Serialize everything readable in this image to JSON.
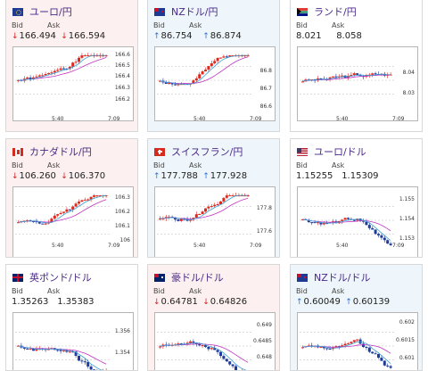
{
  "cards": [
    {
      "id": "eurjpy",
      "title": "ユーロ/円",
      "theme": "red",
      "flag": "eu",
      "bid_label": "Bid",
      "ask_label": "Ask",
      "bid": "166.494",
      "ask": "166.594",
      "bid_dir": "down",
      "ask_dir": "down",
      "y_ticks": [
        "166.6",
        "166.5",
        "166.4",
        "166.3",
        "166.2"
      ],
      "x_ticks": [
        "5:40",
        "7:09"
      ]
    },
    {
      "id": "nzdjpy",
      "title": "NZドル/円",
      "theme": "blue",
      "flag": "nz",
      "bid_label": "Bid",
      "ask_label": "Ask",
      "bid": "86.754",
      "ask": "86.874",
      "bid_dir": "up",
      "ask_dir": "up",
      "y_ticks": [
        "86.8",
        "86.7",
        "86.6"
      ],
      "x_ticks": [
        "5:40",
        "7:09"
      ]
    },
    {
      "id": "zarjpy",
      "title": "ランド/円",
      "theme": "gray",
      "flag": "za",
      "bid_label": "Bid",
      "ask_label": "Ask",
      "bid": "8.021",
      "ask": "8.058",
      "bid_dir": "",
      "ask_dir": "",
      "y_ticks": [
        "8.04",
        "8.03"
      ],
      "x_ticks": [
        "5:40",
        "7:09"
      ]
    },
    {
      "id": "cadjpy",
      "title": "カナダドル/円",
      "theme": "red",
      "flag": "ca",
      "bid_label": "Bid",
      "ask_label": "Ask",
      "bid": "106.260",
      "ask": "106.370",
      "bid_dir": "down",
      "ask_dir": "down",
      "y_ticks": [
        "106.3",
        "106.2",
        "106.1",
        "106"
      ],
      "x_ticks": [
        "5:40",
        "7:09"
      ]
    },
    {
      "id": "chfjpy",
      "title": "スイスフラン/円",
      "theme": "blue",
      "flag": "ch",
      "bid_label": "Bid",
      "ask_label": "Ask",
      "bid": "177.788",
      "ask": "177.928",
      "bid_dir": "up",
      "ask_dir": "up",
      "y_ticks": [
        "177.8",
        "177.6"
      ],
      "x_ticks": [
        "5:40",
        "7:09"
      ]
    },
    {
      "id": "eurusd",
      "title": "ユーロ/ドル",
      "theme": "gray",
      "flag": "us",
      "bid_label": "Bid",
      "ask_label": "Ask",
      "bid": "1.15255",
      "ask": "1.15309",
      "bid_dir": "",
      "ask_dir": "",
      "y_ticks": [
        "1.155",
        "1.154",
        "1.153"
      ],
      "x_ticks": [
        "5:40",
        "7:09"
      ]
    },
    {
      "id": "gbpusd",
      "title": "英ポンド/ドル",
      "theme": "gray",
      "flag": "gb",
      "bid_label": "Bid",
      "ask_label": "Ask",
      "bid": "1.35263",
      "ask": "1.35383",
      "bid_dir": "",
      "ask_dir": "",
      "y_ticks": [
        "1.356",
        "1.354"
      ],
      "x_ticks": []
    },
    {
      "id": "audusd",
      "title": "豪ドル/ドル",
      "theme": "red",
      "flag": "au",
      "bid_label": "Bid",
      "ask_label": "Ask",
      "bid": "0.64781",
      "ask": "0.64826",
      "bid_dir": "down",
      "ask_dir": "down",
      "y_ticks": [
        "0.649",
        "0.6485",
        "0.648"
      ],
      "x_ticks": []
    },
    {
      "id": "nzdusd",
      "title": "NZドル/ドル",
      "theme": "blue",
      "flag": "nz",
      "bid_label": "Bid",
      "ask_label": "Ask",
      "bid": "0.60049",
      "ask": "0.60139",
      "bid_dir": "up",
      "ask_dir": "up",
      "y_ticks": [
        "0.602",
        "0.6015",
        "0.601"
      ],
      "x_ticks": []
    }
  ],
  "colors": {
    "up_candle": "#e0281e",
    "down_candle": "#1e3a9a",
    "ma_fast": "#3aa0d6",
    "ma_slow": "#c234c2",
    "title": "#4a2a87"
  }
}
